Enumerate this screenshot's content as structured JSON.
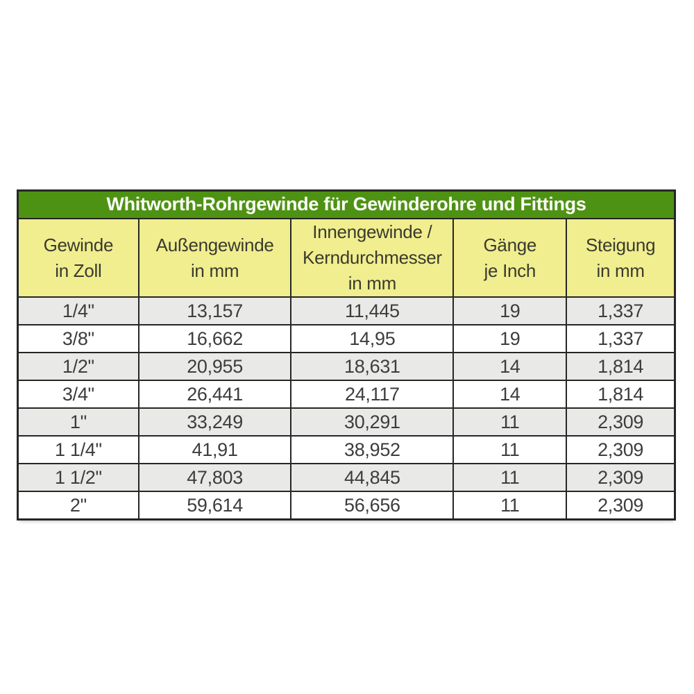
{
  "colors": {
    "title_bg": "#4e9213",
    "title_text": "#ffffff",
    "header_bg": "#f0ee8e",
    "header_text": "#3a3a2e",
    "row_alt_bg": "#e9e9e7",
    "row_bg": "#ffffff",
    "cell_text": "#3d3d3d",
    "border": "#262626",
    "page_bg": "#ffffff"
  },
  "chart_data": {
    "type": "table",
    "title": "Whitworth-Rohrgewinde für Gewinderohre und Fittings",
    "columns": [
      "Gewinde\nin Zoll",
      "Außengewinde\nin mm",
      "Innengewinde /\nKerndurchmesser\nin mm",
      "Gänge\nje Inch",
      "Steigung\nin mm"
    ],
    "rows": [
      [
        "1/4\"",
        "13,157",
        "11,445",
        "19",
        "1,337"
      ],
      [
        "3/8\"",
        "16,662",
        "14,95",
        "19",
        "1,337"
      ],
      [
        "1/2\"",
        "20,955",
        "18,631",
        "14",
        "1,814"
      ],
      [
        "3/4\"",
        "26,441",
        "24,117",
        "14",
        "1,814"
      ],
      [
        "1\"",
        "33,249",
        "30,291",
        "11",
        "2,309"
      ],
      [
        "1 1/4\"",
        "41,91",
        "38,952",
        "11",
        "2,309"
      ],
      [
        "1 1/2\"",
        "47,803",
        "44,845",
        "11",
        "2,309"
      ],
      [
        "2\"",
        "59,614",
        "56,656",
        "11",
        "2,309"
      ]
    ],
    "layout": {
      "column_widths_pct": [
        18.4,
        23.2,
        24.7,
        17.2,
        16.5
      ],
      "row_striping": "gray-white-alternating-starting-gray",
      "legend": "none",
      "grid": "full-borders"
    }
  }
}
